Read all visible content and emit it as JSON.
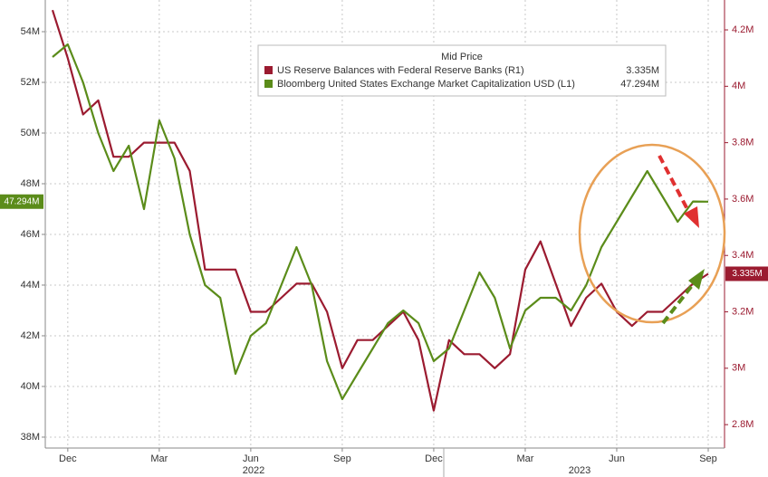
{
  "chart_data": {
    "type": "line",
    "legend_title": "Mid Price",
    "categories": [
      null,
      "Dec",
      null,
      null,
      null,
      null,
      null,
      "Mar",
      null,
      null,
      null,
      null,
      null,
      "Jun",
      null,
      null,
      null,
      null,
      null,
      "Sep",
      null,
      null,
      null,
      null,
      null,
      "Dec",
      null,
      null,
      null,
      null,
      null,
      "Mar",
      null,
      null,
      null,
      null,
      null,
      "Jun",
      null,
      null,
      null,
      null,
      null,
      "Sep"
    ],
    "x_group_labels": [
      "2022",
      "2023"
    ],
    "ylim": [
      37.57,
      55.25
    ],
    "yticks": [
      {
        "value": 38,
        "label": "38M"
      },
      {
        "value": 40,
        "label": "40M"
      },
      {
        "value": 42,
        "label": "42M"
      },
      {
        "value": 44,
        "label": "44M"
      },
      {
        "value": 46,
        "label": "46M"
      },
      {
        "value": 48,
        "label": "48M"
      },
      {
        "value": 50,
        "label": "50M"
      },
      {
        "value": 52,
        "label": "52M"
      },
      {
        "value": 54,
        "label": "54M"
      }
    ],
    "y2lim": [
      2.717,
      4.306
    ],
    "y2ticks": [
      {
        "value": 2.8,
        "label": "2.8M"
      },
      {
        "value": 3,
        "label": "3M"
      },
      {
        "value": 3.2,
        "label": "3.2M"
      },
      {
        "value": 3.4,
        "label": "3.4M"
      },
      {
        "value": 3.6,
        "label": "3.6M"
      },
      {
        "value": 3.8,
        "label": "3.8M"
      },
      {
        "value": 4,
        "label": "4M"
      },
      {
        "value": 4.2,
        "label": "4.2M"
      }
    ],
    "grid": true,
    "series": [
      {
        "name": "US Reserve Balances with Federal Reserve Banks  (R1)",
        "color": "#9b1b30",
        "axis": "y2",
        "last_value_label": "3.335M",
        "values": [
          4.27,
          4.1,
          3.9,
          3.95,
          3.75,
          3.75,
          3.8,
          3.8,
          3.8,
          3.7,
          3.35,
          3.35,
          3.35,
          3.2,
          3.2,
          3.25,
          3.3,
          3.3,
          3.2,
          3.0,
          3.1,
          3.1,
          3.15,
          3.2,
          3.1,
          2.85,
          3.1,
          3.05,
          3.05,
          3.0,
          3.05,
          3.35,
          3.45,
          3.3,
          3.15,
          3.25,
          3.3,
          3.2,
          3.15,
          3.2,
          3.2,
          3.25,
          3.3,
          3.335
        ]
      },
      {
        "name": "Bloomberg United States Exchange Market Capitalization USD  (L1)",
        "color": "#5b8c1a",
        "axis": "y",
        "last_value_label": "47.294M",
        "values": [
          53,
          53.5,
          52,
          50,
          48.5,
          49.5,
          47,
          50.5,
          49,
          46,
          44,
          43.5,
          40.5,
          42,
          42.5,
          44,
          45.5,
          44,
          41,
          39.5,
          40.5,
          41.5,
          42.5,
          43,
          42.5,
          41,
          41.5,
          43,
          44.5,
          43.5,
          41.5,
          43,
          43.5,
          43.5,
          43,
          44,
          45.5,
          46.5,
          47.5,
          48.5,
          47.5,
          46.5,
          47.3,
          47.294
        ]
      }
    ]
  }
}
